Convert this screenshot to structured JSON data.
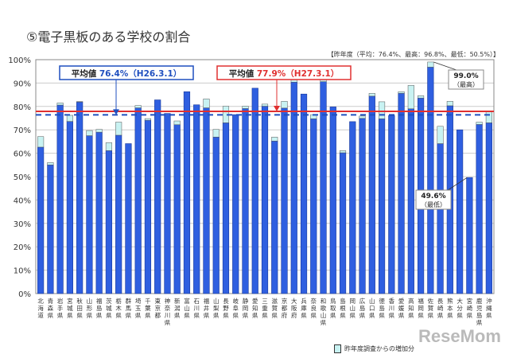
{
  "title": "⑤電子黒板のある学校の割合",
  "watermark": "ReseMom",
  "chart_data": {
    "type": "bar",
    "stacked": true,
    "title": "⑤電子黒板のある学校の割合",
    "note": "【昨年度（平均：76.4%、最高：96.8%、最低：50.5%）】",
    "ylim": [
      0,
      100
    ],
    "yticks": [
      "0%",
      "10%",
      "20%",
      "30%",
      "40%",
      "50%",
      "60%",
      "70%",
      "80%",
      "90%",
      "100%"
    ],
    "grid": true,
    "categories": [
      "北海道",
      "青森県",
      "岩手県",
      "宮城県",
      "秋田県",
      "山形県",
      "福島県",
      "茨城県",
      "栃木県",
      "群馬県",
      "埼玉県",
      "千葉県",
      "東京都",
      "神奈川県",
      "新潟県",
      "富山県",
      "石川県",
      "福井県",
      "山梨県",
      "長野県",
      "岐阜県",
      "静岡県",
      "愛知県",
      "三重県",
      "滋賀県",
      "京都府",
      "大阪府",
      "兵庫県",
      "奈良県",
      "和歌山県",
      "鳥取県",
      "島根県",
      "岡山県",
      "広島県",
      "山口県",
      "徳島県",
      "香川県",
      "愛媛県",
      "高知県",
      "福岡県",
      "佐賀県",
      "長崎県",
      "熊本県",
      "大分県",
      "宮崎県",
      "鹿児島県",
      "沖縄県"
    ],
    "series": [
      {
        "values": [
          62.6,
          55.0,
          80.6,
          73.6,
          81.9,
          67.5,
          69.0,
          61.1,
          67.7,
          64.1,
          79.4,
          74.1,
          82.8,
          77.0,
          72.2,
          86.3,
          80.7,
          79.4,
          66.9,
          73.0,
          76.5,
          79.1,
          87.8,
          80.1,
          65.2,
          79.3,
          90.4,
          85.3,
          74.7,
          90.6,
          79.8,
          60.2,
          73.5,
          74.9,
          84.4,
          74.7,
          76.1,
          85.6,
          79.0,
          83.6,
          96.8,
          64.1,
          80.3,
          70.0,
          49.6,
          72.3,
          73.0
        ],
        "color": "#2f5fe0"
      },
      {
        "name": "昨年度調査からの増加分",
        "values": [
          4.5,
          1.0,
          0.9,
          2.6,
          0.2,
          2.2,
          1.2,
          3.4,
          5.6,
          0,
          1.0,
          0.7,
          0,
          0,
          1.6,
          0,
          0,
          3.8,
          3.3,
          7.1,
          0,
          1.0,
          0,
          0.9,
          1.7,
          2.9,
          1.1,
          0,
          1.8,
          0.9,
          0,
          0.9,
          0,
          1.0,
          1.2,
          7.3,
          0,
          0.7,
          10.0,
          1.0,
          2.2,
          7.4,
          1.9,
          0,
          0,
          1.0,
          5.1
        ],
        "color": "#c8f2f2"
      }
    ],
    "reference_lines": [
      {
        "label_prefix": "平均値",
        "value_text": "76.4%（H26.3.1）",
        "value": 76.4,
        "color": "#1f4fbf",
        "style": "dashed"
      },
      {
        "label_prefix": "平均値",
        "value_text": "77.9%（H27.3.1）",
        "value": 77.9,
        "color": "#e03030",
        "style": "solid"
      }
    ],
    "annotations": [
      {
        "value_text": "99.0%",
        "sub": "（最高）",
        "category": "佐賀県",
        "value": 99.0
      },
      {
        "value_text": "49.6%",
        "sub": "（最低）",
        "category": "宮崎県",
        "value": 49.6
      }
    ],
    "legend": {
      "position": "bottom-right",
      "label": "昨年度調査からの増加分"
    }
  }
}
